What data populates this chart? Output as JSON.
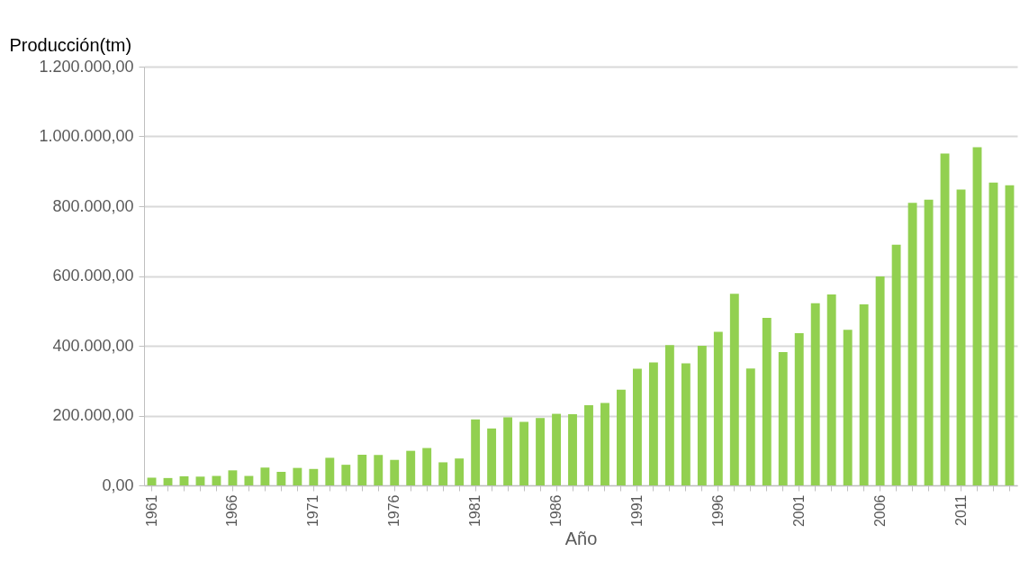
{
  "chart_data": {
    "type": "bar",
    "ylabel": "Producción(tm)",
    "xlabel": "Año",
    "color": "#92d050",
    "grid": "y",
    "categories": [
      "1961",
      null,
      null,
      null,
      null,
      "1966",
      null,
      null,
      null,
      null,
      "1971",
      null,
      null,
      null,
      null,
      "1976",
      null,
      null,
      null,
      null,
      "1981",
      null,
      null,
      null,
      null,
      "1986",
      null,
      null,
      null,
      null,
      "1991",
      null,
      null,
      null,
      null,
      "1996",
      null,
      null,
      null,
      null,
      "2001",
      null,
      null,
      null,
      null,
      "2006",
      null,
      null,
      null,
      null,
      "2011",
      null,
      null,
      null
    ],
    "values": [
      22000,
      21000,
      26000,
      25000,
      27000,
      43000,
      27000,
      51000,
      39000,
      50000,
      47000,
      79000,
      59000,
      88000,
      87000,
      73000,
      99000,
      107000,
      66000,
      77000,
      189000,
      163000,
      195000,
      182000,
      193000,
      205000,
      204000,
      230000,
      236000,
      274000,
      334000,
      352000,
      402000,
      350000,
      400000,
      440000,
      549000,
      335000,
      480000,
      382000,
      436000,
      522000,
      547000,
      446000,
      519000,
      599000,
      690000,
      810000,
      819000,
      951000,
      848000,
      969000,
      868000,
      860000
    ],
    "ylim": [
      0,
      1200000
    ],
    "yticks": [
      {
        "value": 0,
        "label": "0,00"
      },
      {
        "value": 200000,
        "label": "200.000,00"
      },
      {
        "value": 400000,
        "label": "400.000,00"
      },
      {
        "value": 600000,
        "label": "600.000,00"
      },
      {
        "value": 800000,
        "label": "800.000,00"
      },
      {
        "value": 1000000,
        "label": "1.000.000,00"
      },
      {
        "value": 1200000,
        "label": "1.200.000,00"
      }
    ]
  }
}
